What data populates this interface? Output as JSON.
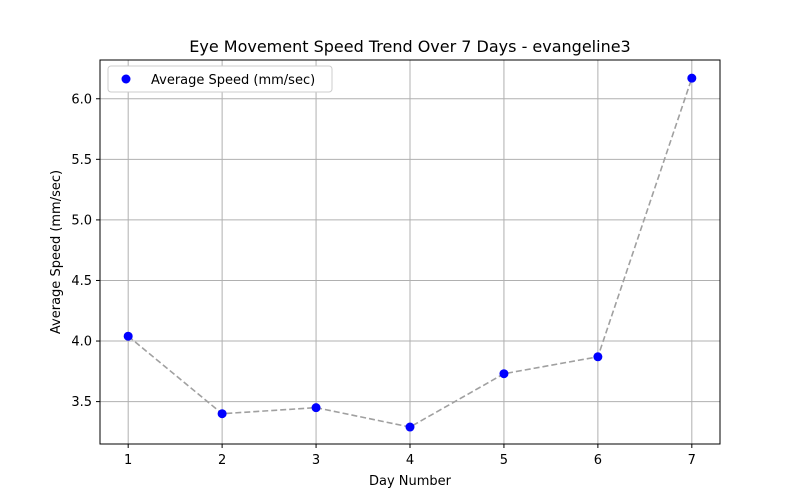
{
  "chart_data": {
    "type": "scatter",
    "title": "Eye Movement Speed Trend Over 7 Days - evangeline3",
    "xlabel": "Day Number",
    "ylabel": "Average Speed (mm/sec)",
    "x": [
      1,
      2,
      3,
      4,
      5,
      6,
      7
    ],
    "series": [
      {
        "name": "Average Speed (mm/sec)",
        "values": [
          4.04,
          3.4,
          3.45,
          3.29,
          3.73,
          3.87,
          6.17
        ],
        "marker_color": "#0000ff",
        "line_color": "#a0a0a0",
        "line_style": "dashed"
      }
    ],
    "xlim": [
      0.7,
      7.3
    ],
    "ylim": [
      3.15,
      6.32
    ],
    "xticks": [
      "1",
      "2",
      "3",
      "4",
      "5",
      "6",
      "7"
    ],
    "yticks": [
      "3.5",
      "4.0",
      "4.5",
      "5.0",
      "5.5",
      "6.0"
    ],
    "grid": true,
    "legend_position": "top-left"
  }
}
